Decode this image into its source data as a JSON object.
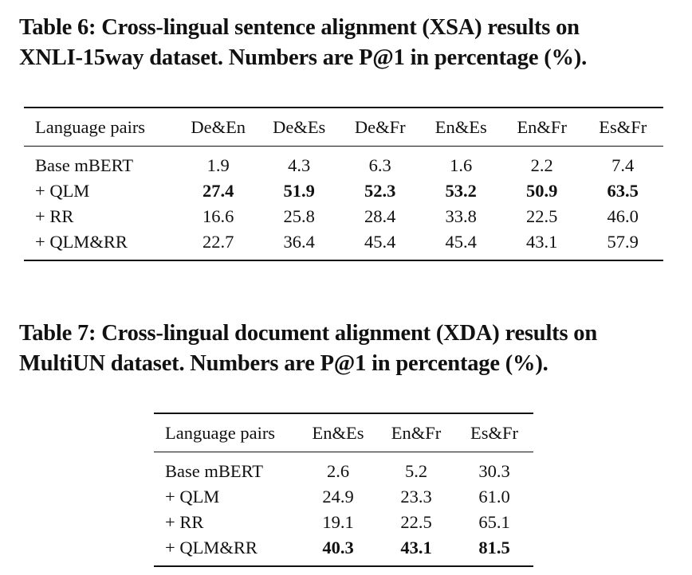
{
  "table6": {
    "caption_line1": "Table 6: Cross-lingual sentence alignment (XSA) results on",
    "caption_line2": "XNLI-15way dataset. Numbers are P@1 in percentage (%).",
    "headers": [
      "Language pairs",
      "De&En",
      "De&Es",
      "De&Fr",
      "En&Es",
      "En&Fr",
      "Es&Fr"
    ],
    "rows": [
      {
        "label": "Base mBERT",
        "values": [
          "1.9",
          "4.3",
          "6.3",
          "1.6",
          "2.2",
          "7.4"
        ],
        "bold": [
          false,
          false,
          false,
          false,
          false,
          false
        ]
      },
      {
        "label": "+ QLM",
        "values": [
          "27.4",
          "51.9",
          "52.3",
          "53.2",
          "50.9",
          "63.5"
        ],
        "bold": [
          true,
          true,
          true,
          true,
          true,
          true
        ]
      },
      {
        "label": "+ RR",
        "values": [
          "16.6",
          "25.8",
          "28.4",
          "33.8",
          "22.5",
          "46.0"
        ],
        "bold": [
          false,
          false,
          false,
          false,
          false,
          false
        ]
      },
      {
        "label": "+ QLM&RR",
        "values": [
          "22.7",
          "36.4",
          "45.4",
          "45.4",
          "43.1",
          "57.9"
        ],
        "bold": [
          false,
          false,
          false,
          false,
          false,
          false
        ]
      }
    ]
  },
  "table7": {
    "caption_line1": "Table 7: Cross-lingual document alignment (XDA) results on",
    "caption_line2": "MultiUN dataset. Numbers are P@1 in percentage (%).",
    "headers": [
      "Language pairs",
      "En&Es",
      "En&Fr",
      "Es&Fr"
    ],
    "rows": [
      {
        "label": "Base mBERT",
        "values": [
          "2.6",
          "5.2",
          "30.3"
        ],
        "bold": [
          false,
          false,
          false
        ]
      },
      {
        "label": "+ QLM",
        "values": [
          "24.9",
          "23.3",
          "61.0"
        ],
        "bold": [
          false,
          false,
          false
        ]
      },
      {
        "label": "+ RR",
        "values": [
          "19.1",
          "22.5",
          "65.1"
        ],
        "bold": [
          false,
          false,
          false
        ]
      },
      {
        "label": "+ QLM&RR",
        "values": [
          "40.3",
          "43.1",
          "81.5"
        ],
        "bold": [
          true,
          true,
          true
        ]
      }
    ]
  }
}
